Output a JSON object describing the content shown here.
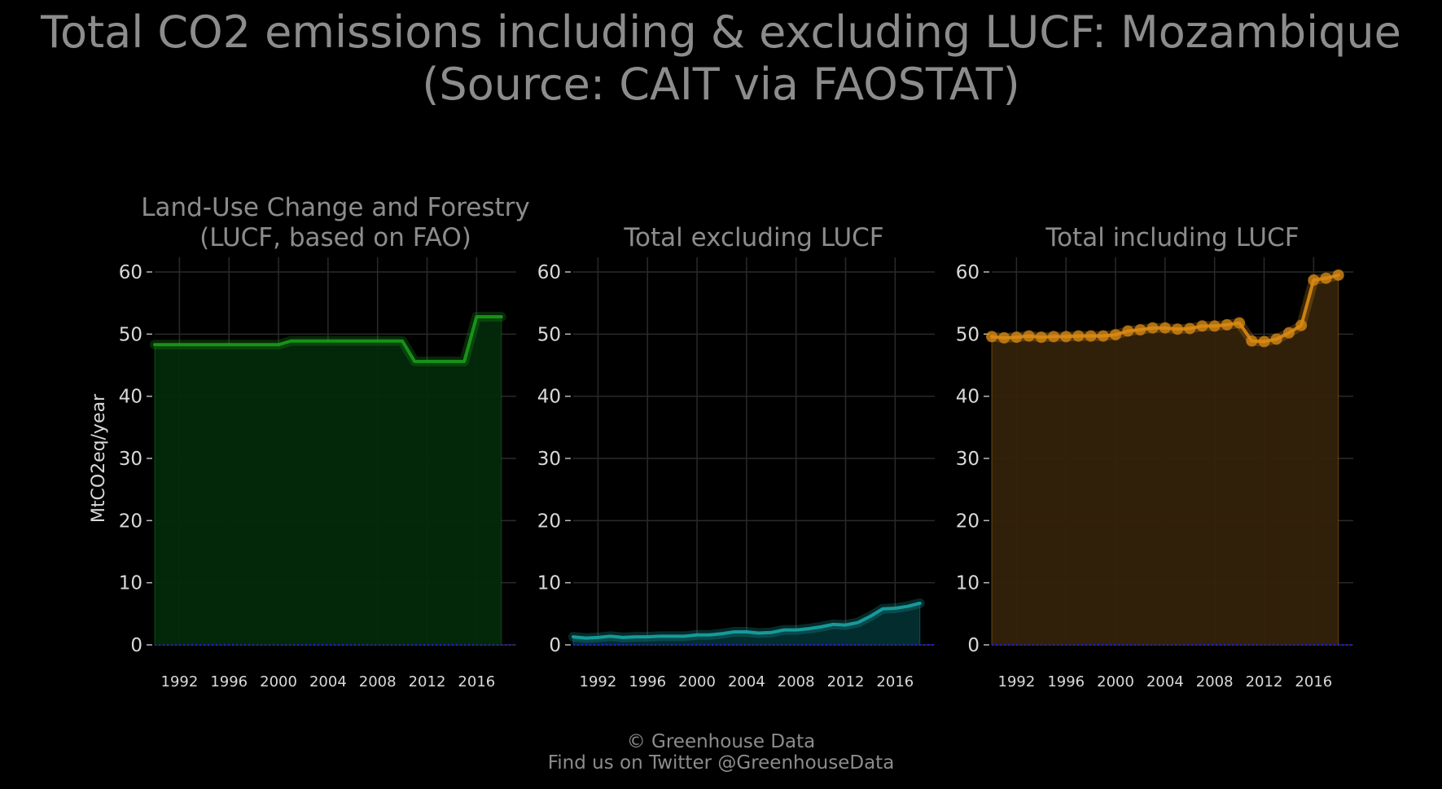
{
  "page": {
    "title_line1": "Total CO2 emissions including & excluding LUCF: Mozambique",
    "title_line2": "(Source: CAIT via FAOSTAT)",
    "footer_line1": "© Greenhouse Data",
    "footer_line2": "Find us on Twitter @GreenhouseData"
  },
  "chart_data": [
    {
      "type": "area",
      "title_lines": [
        "Land-Use Change and Forestry",
        "(LUCF, based on FAO)"
      ],
      "ylabel": "MtCO2eq/year",
      "color": "#1a9c1a",
      "fill": "#03290a",
      "markers": false,
      "x": [
        1990,
        1991,
        1992,
        1993,
        1994,
        1995,
        1996,
        1997,
        1998,
        1999,
        2000,
        2001,
        2002,
        2003,
        2004,
        2005,
        2006,
        2007,
        2008,
        2009,
        2010,
        2011,
        2012,
        2013,
        2014,
        2015,
        2016,
        2017,
        2018
      ],
      "values": [
        48.3,
        48.3,
        48.3,
        48.3,
        48.3,
        48.3,
        48.3,
        48.3,
        48.3,
        48.3,
        48.3,
        48.9,
        48.9,
        48.9,
        48.9,
        48.9,
        48.9,
        48.9,
        48.9,
        48.9,
        48.9,
        45.6,
        45.6,
        45.6,
        45.6,
        45.6,
        52.8,
        52.8,
        52.8
      ],
      "ylim": [
        0,
        60
      ],
      "yticks": [
        0,
        10,
        20,
        30,
        40,
        50,
        60
      ],
      "xticks": [
        1992,
        1996,
        2000,
        2004,
        2008,
        2012,
        2016
      ],
      "grid": true
    },
    {
      "type": "area",
      "title_lines": [
        "Total excluding LUCF"
      ],
      "ylabel": "",
      "color": "#18a4a4",
      "fill": "#032e32",
      "markers": false,
      "x": [
        1990,
        1991,
        1992,
        1993,
        1994,
        1995,
        1996,
        1997,
        1998,
        1999,
        2000,
        2001,
        2002,
        2003,
        2004,
        2005,
        2006,
        2007,
        2008,
        2009,
        2010,
        2011,
        2012,
        2013,
        2014,
        2015,
        2016,
        2017,
        2018
      ],
      "values": [
        1.3,
        1.1,
        1.2,
        1.4,
        1.2,
        1.3,
        1.3,
        1.4,
        1.4,
        1.4,
        1.6,
        1.6,
        1.8,
        2.1,
        2.1,
        1.9,
        2.0,
        2.4,
        2.4,
        2.6,
        2.9,
        3.3,
        3.2,
        3.6,
        4.6,
        5.8,
        5.9,
        6.2,
        6.7
      ],
      "ylim": [
        0,
        60
      ],
      "yticks": [
        0,
        10,
        20,
        30,
        40,
        50,
        60
      ],
      "xticks": [
        1992,
        1996,
        2000,
        2004,
        2008,
        2012,
        2016
      ],
      "grid": true
    },
    {
      "type": "area",
      "title_lines": [
        "Total including LUCF"
      ],
      "ylabel": "",
      "color": "#d88a14",
      "fill": "#34220a",
      "markers": true,
      "x": [
        1990,
        1991,
        1992,
        1993,
        1994,
        1995,
        1996,
        1997,
        1998,
        1999,
        2000,
        2001,
        2002,
        2003,
        2004,
        2005,
        2006,
        2007,
        2008,
        2009,
        2010,
        2011,
        2012,
        2013,
        2014,
        2015,
        2016,
        2017,
        2018
      ],
      "values": [
        49.6,
        49.4,
        49.5,
        49.7,
        49.5,
        49.6,
        49.6,
        49.7,
        49.7,
        49.7,
        49.9,
        50.5,
        50.7,
        51.0,
        51.0,
        50.8,
        50.9,
        51.3,
        51.3,
        51.5,
        51.8,
        48.9,
        48.8,
        49.2,
        50.2,
        51.4,
        58.7,
        59.0,
        59.5
      ],
      "ylim": [
        0,
        60
      ],
      "yticks": [
        0,
        10,
        20,
        30,
        40,
        50,
        60
      ],
      "xticks": [
        1992,
        1996,
        2000,
        2004,
        2008,
        2012,
        2016
      ],
      "grid": true
    }
  ]
}
